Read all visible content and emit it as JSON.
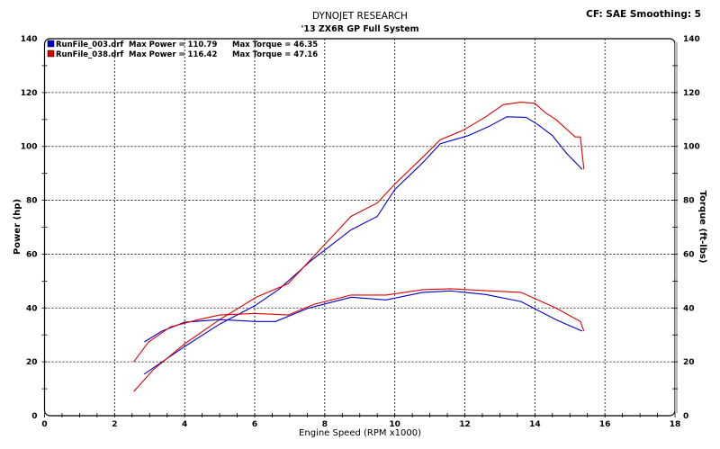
{
  "chart_data": {
    "type": "line",
    "title": "DYNOJET RESEARCH",
    "subtitle": "'13 ZX6R GP Full System",
    "corner_text": "CF: SAE  Smoothing: 5",
    "xlabel": "Engine Speed (RPM x1000)",
    "ylabel": "Power (hp)",
    "y2label": "Torque (ft-lbs)",
    "xlim": [
      0,
      18
    ],
    "ylim": [
      0,
      140
    ],
    "xticks": [
      "0",
      "2",
      "4",
      "6",
      "8",
      "10",
      "12",
      "14",
      "16",
      "18"
    ],
    "yticks": [
      "0",
      "20",
      "40",
      "60",
      "80",
      "100",
      "120",
      "140"
    ],
    "grid": true,
    "legend_placement": "top-left",
    "legend": [
      {
        "file": "RunFile_003.drf",
        "power_label": "Max Power = 110.79",
        "torque_label": "Max Torque = 46.35",
        "color": "#0000cc"
      },
      {
        "file": "RunFile_038.drf",
        "power_label": "Max Power = 116.42",
        "torque_label": "Max Torque = 47.16",
        "color": "#dd0000"
      }
    ],
    "series": [
      {
        "run": "RunFile_003.drf",
        "measure": "power",
        "color": "#0000cc",
        "x": [
          2.84,
          4.0,
          5.0,
          6.0,
          6.7,
          7.6,
          8.75,
          9.5,
          10.0,
          10.8,
          11.3,
          12.1,
          12.7,
          13.2,
          13.75,
          14.1,
          14.5,
          14.9,
          15.35
        ],
        "y": [
          15.4,
          25.7,
          34,
          40.8,
          47,
          57.5,
          69,
          74,
          84,
          94,
          101,
          104,
          107.5,
          111,
          110.8,
          108,
          104,
          97.5,
          91.5
        ]
      },
      {
        "run": "RunFile_038.drf",
        "measure": "power",
        "color": "#dd0000",
        "x": [
          2.55,
          3.1,
          4.0,
          5.0,
          6.05,
          6.95,
          7.6,
          8.75,
          9.5,
          10.0,
          10.8,
          11.3,
          11.95,
          12.6,
          13.1,
          13.6,
          14.0,
          14.3,
          14.6,
          15.15,
          15.3,
          15.4
        ],
        "y": [
          9,
          17,
          26.7,
          35.7,
          44,
          49,
          58,
          74,
          79,
          86,
          96,
          102.5,
          106,
          111,
          115.5,
          116.4,
          116,
          112.5,
          110,
          103.5,
          103.5,
          91.5
        ]
      },
      {
        "run": "RunFile_003.drf",
        "measure": "torque",
        "color": "#0000cc",
        "x": [
          2.85,
          3.35,
          4.0,
          5.0,
          6.05,
          6.6,
          7.5,
          8.75,
          9.75,
          10.8,
          11.6,
          12.6,
          13.6,
          14.6,
          15.35
        ],
        "y": [
          27.4,
          31.4,
          34.7,
          35.7,
          35,
          35,
          39.8,
          44,
          43,
          45.8,
          46.35,
          45,
          42.4,
          35.7,
          31.4
        ]
      },
      {
        "run": "RunFile_038.drf",
        "measure": "torque",
        "color": "#dd0000",
        "x": [
          2.55,
          2.97,
          3.6,
          4.4,
          5.0,
          6.0,
          6.95,
          7.7,
          8.75,
          9.75,
          10.8,
          11.6,
          12.6,
          13.6,
          14.6,
          15.3,
          15.4
        ],
        "y": [
          20,
          27.4,
          33,
          35.7,
          37.4,
          38,
          37.4,
          41.4,
          44.8,
          44.8,
          46.8,
          47.16,
          46.4,
          45.8,
          40,
          35,
          31.4
        ]
      }
    ]
  }
}
